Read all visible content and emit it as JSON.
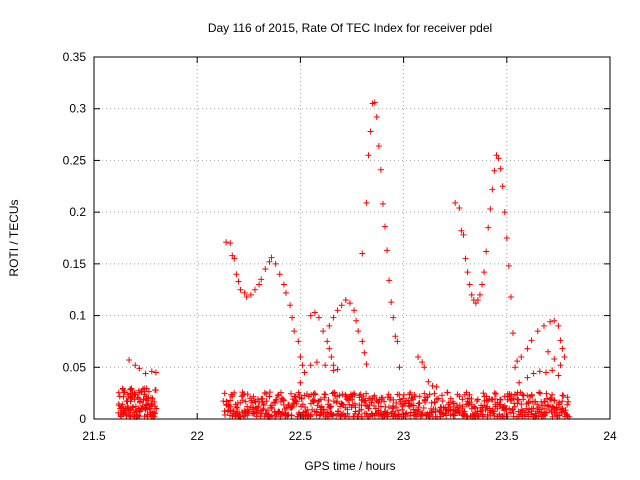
{
  "chart_data": {
    "type": "scatter",
    "title": "Day 116 of 2015, Rate Of TEC Index for receiver pdel",
    "xlabel": "GPS time / hours",
    "ylabel": "ROTI / TECUs",
    "xlim": [
      21.5,
      24
    ],
    "ylim": [
      0,
      0.35
    ],
    "xticks": [
      21.5,
      22,
      22.5,
      23,
      23.5,
      24
    ],
    "xtick_labels": [
      "21.5",
      "22",
      "22.5",
      "23",
      "23.5",
      "24"
    ],
    "yticks": [
      0,
      0.05,
      0.1,
      0.15,
      0.2,
      0.25,
      0.3,
      0.35
    ],
    "ytick_labels": [
      "0",
      "0.05",
      "0.1",
      "0.15",
      "0.2",
      "0.25",
      "0.3",
      "0.35"
    ],
    "grid": true,
    "marker": "+",
    "series": [
      {
        "name": "ROTI",
        "color": "#ff0000",
        "points": [
          [
            21.67,
            0.057
          ],
          [
            21.7,
            0.052
          ],
          [
            21.72,
            0.049
          ],
          [
            21.75,
            0.044
          ],
          [
            21.78,
            0.046
          ],
          [
            21.8,
            0.045
          ],
          [
            22.14,
            0.171
          ],
          [
            22.16,
            0.17
          ],
          [
            22.17,
            0.158
          ],
          [
            22.18,
            0.155
          ],
          [
            22.19,
            0.14
          ],
          [
            22.2,
            0.133
          ],
          [
            22.21,
            0.125
          ],
          [
            22.23,
            0.122
          ],
          [
            22.24,
            0.118
          ],
          [
            22.26,
            0.12
          ],
          [
            22.28,
            0.125
          ],
          [
            22.3,
            0.13
          ],
          [
            22.31,
            0.135
          ],
          [
            22.33,
            0.145
          ],
          [
            22.35,
            0.152
          ],
          [
            22.36,
            0.156
          ],
          [
            22.38,
            0.15
          ],
          [
            22.4,
            0.14
          ],
          [
            22.42,
            0.13
          ],
          [
            22.43,
            0.122
          ],
          [
            22.45,
            0.11
          ],
          [
            22.46,
            0.098
          ],
          [
            22.47,
            0.085
          ],
          [
            22.49,
            0.075
          ],
          [
            22.5,
            0.06
          ],
          [
            22.51,
            0.052
          ],
          [
            22.5,
            0.035
          ],
          [
            22.52,
            0.045
          ],
          [
            22.55,
            0.052
          ],
          [
            22.58,
            0.055
          ],
          [
            22.62,
            0.052
          ],
          [
            22.66,
            0.047
          ],
          [
            22.55,
            0.1
          ],
          [
            22.57,
            0.103
          ],
          [
            22.59,
            0.098
          ],
          [
            22.61,
            0.085
          ],
          [
            22.63,
            0.075
          ],
          [
            22.64,
            0.068
          ],
          [
            22.65,
            0.06
          ],
          [
            22.66,
            0.052
          ],
          [
            22.68,
            0.048
          ],
          [
            22.64,
            0.09
          ],
          [
            22.66,
            0.098
          ],
          [
            22.68,
            0.105
          ],
          [
            22.7,
            0.11
          ],
          [
            22.72,
            0.115
          ],
          [
            22.74,
            0.112
          ],
          [
            22.76,
            0.105
          ],
          [
            22.77,
            0.095
          ],
          [
            22.78,
            0.085
          ],
          [
            22.8,
            0.075
          ],
          [
            22.81,
            0.064
          ],
          [
            22.82,
            0.053
          ],
          [
            22.8,
            0.16
          ],
          [
            22.82,
            0.209
          ],
          [
            22.83,
            0.255
          ],
          [
            22.84,
            0.278
          ],
          [
            22.85,
            0.305
          ],
          [
            22.86,
            0.306
          ],
          [
            22.87,
            0.292
          ],
          [
            22.88,
            0.264
          ],
          [
            22.89,
            0.241
          ],
          [
            22.9,
            0.208
          ],
          [
            22.91,
            0.186
          ],
          [
            22.92,
            0.163
          ],
          [
            22.93,
            0.134
          ],
          [
            22.94,
            0.113
          ],
          [
            22.95,
            0.098
          ],
          [
            22.96,
            0.08
          ],
          [
            22.97,
            0.075
          ],
          [
            22.98,
            0.05
          ],
          [
            23.07,
            0.06
          ],
          [
            23.09,
            0.055
          ],
          [
            23.1,
            0.05
          ],
          [
            23.12,
            0.036
          ],
          [
            23.14,
            0.032
          ],
          [
            23.16,
            0.031
          ],
          [
            23.25,
            0.209
          ],
          [
            23.27,
            0.204
          ],
          [
            23.28,
            0.182
          ],
          [
            23.29,
            0.178
          ],
          [
            23.3,
            0.155
          ],
          [
            23.31,
            0.142
          ],
          [
            23.32,
            0.13
          ],
          [
            23.33,
            0.12
          ],
          [
            23.34,
            0.115
          ],
          [
            23.35,
            0.112
          ],
          [
            23.36,
            0.115
          ],
          [
            23.37,
            0.12
          ],
          [
            23.38,
            0.13
          ],
          [
            23.39,
            0.142
          ],
          [
            23.4,
            0.162
          ],
          [
            23.41,
            0.185
          ],
          [
            23.42,
            0.203
          ],
          [
            23.43,
            0.222
          ],
          [
            23.44,
            0.24
          ],
          [
            23.45,
            0.255
          ],
          [
            23.46,
            0.252
          ],
          [
            23.47,
            0.242
          ],
          [
            23.48,
            0.225
          ],
          [
            23.49,
            0.2
          ],
          [
            23.5,
            0.175
          ],
          [
            23.51,
            0.148
          ],
          [
            23.52,
            0.118
          ],
          [
            23.53,
            0.083
          ],
          [
            23.54,
            0.05
          ],
          [
            23.56,
            0.035
          ],
          [
            23.55,
            0.056
          ],
          [
            23.57,
            0.06
          ],
          [
            23.6,
            0.068
          ],
          [
            23.62,
            0.076
          ],
          [
            23.65,
            0.085
          ],
          [
            23.68,
            0.09
          ],
          [
            23.71,
            0.094
          ],
          [
            23.73,
            0.095
          ],
          [
            23.75,
            0.09
          ],
          [
            23.76,
            0.076
          ],
          [
            23.77,
            0.068
          ],
          [
            23.78,
            0.06
          ],
          [
            23.6,
            0.04
          ],
          [
            23.63,
            0.044
          ],
          [
            23.66,
            0.046
          ],
          [
            23.69,
            0.045
          ],
          [
            23.72,
            0.047
          ],
          [
            23.75,
            0.042
          ],
          [
            23.7,
            0.065
          ],
          [
            23.73,
            0.058
          ],
          [
            23.76,
            0.052
          ]
        ],
        "bands": [
          {
            "x_from": 21.62,
            "x_to": 21.8,
            "y_low": 0.002,
            "y_high": 0.03,
            "count": 130
          },
          {
            "x_from": 22.13,
            "x_to": 23.8,
            "y_low": 0.002,
            "y_high": 0.026,
            "count": 760
          }
        ]
      }
    ]
  }
}
